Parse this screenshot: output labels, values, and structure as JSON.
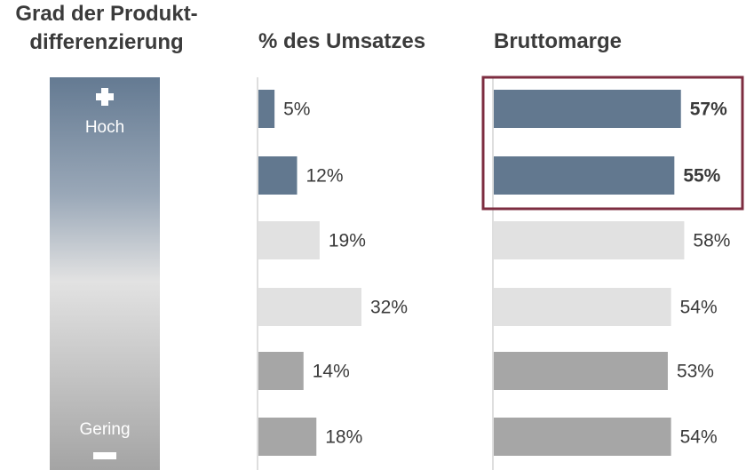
{
  "headings": {
    "differentiation_line1": "Grad der Produkt-",
    "differentiation_line2": "differenzierung",
    "revenue": "% des Umsatzes",
    "margin": "Bruttomarge"
  },
  "scale": {
    "high": "Hoch",
    "low": "Gering",
    "high_icon": "plus-icon",
    "low_icon": "minus-icon"
  },
  "colors": {
    "blue": "#62788f",
    "light": "#e1e1e1",
    "gray": "#a6a6a6",
    "highlight": "#7d2d40"
  },
  "chart_data": [
    {
      "type": "bar",
      "orientation": "horizontal",
      "title": "% des Umsatzes",
      "values": [
        5,
        12,
        19,
        32,
        14,
        18
      ],
      "labels": [
        "5%",
        "12%",
        "19%",
        "32%",
        "14%",
        "18%"
      ],
      "groups": [
        "blue",
        "blue",
        "light",
        "light",
        "gray",
        "gray"
      ],
      "xlim": [
        0,
        40
      ]
    },
    {
      "type": "bar",
      "orientation": "horizontal",
      "title": "Bruttomarge",
      "values": [
        57,
        55,
        58,
        54,
        53,
        54
      ],
      "labels": [
        "57%",
        "55%",
        "58%",
        "54%",
        "53%",
        "54%"
      ],
      "groups": [
        "blue",
        "blue",
        "light",
        "light",
        "gray",
        "gray"
      ],
      "bold": [
        true,
        true,
        false,
        false,
        false,
        false
      ],
      "highlighted_rows": [
        0,
        1
      ],
      "xlim": [
        0,
        66
      ]
    }
  ]
}
